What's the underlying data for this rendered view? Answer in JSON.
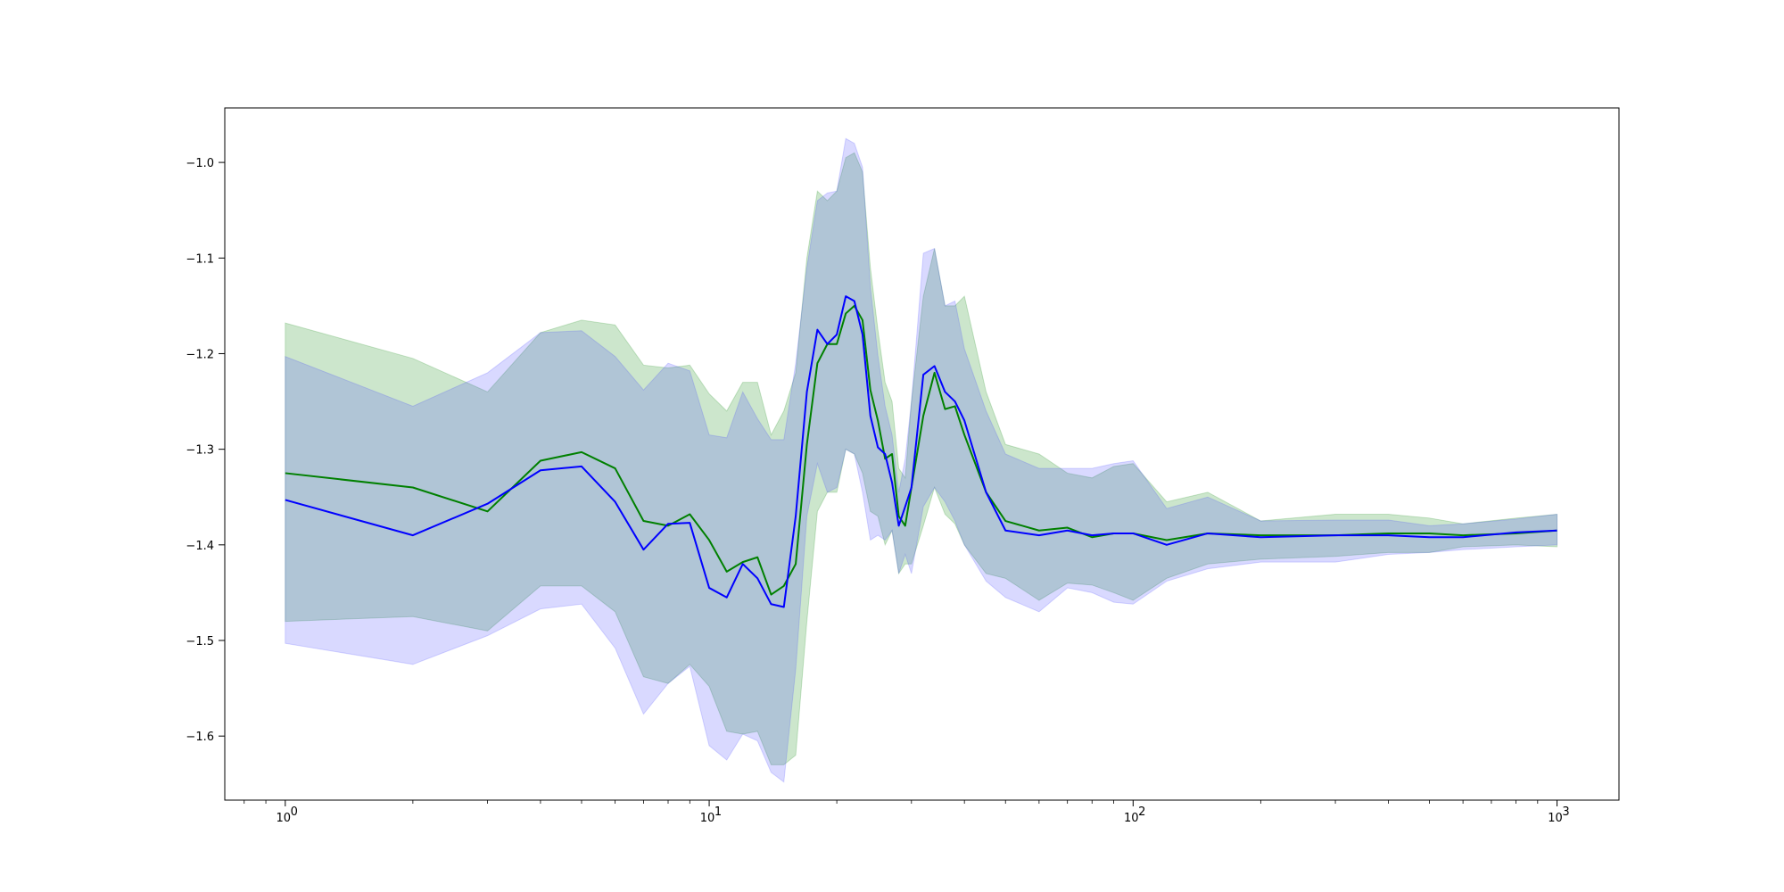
{
  "chart_data": {
    "type": "line",
    "title": "",
    "xlabel": "",
    "ylabel": "",
    "x_scale": "log",
    "xlim": [
      0.72,
      1400
    ],
    "ylim": [
      -1.667,
      -0.943
    ],
    "grid": false,
    "legend": "none",
    "x_ticks": [
      {
        "value": 1,
        "base": "10",
        "exp": "0"
      },
      {
        "value": 10,
        "base": "10",
        "exp": "1"
      },
      {
        "value": 100,
        "base": "10",
        "exp": "2"
      },
      {
        "value": 1000,
        "base": "10",
        "exp": "3"
      }
    ],
    "y_ticks": [
      {
        "value": -1.0,
        "label": "−1.0"
      },
      {
        "value": -1.1,
        "label": "−1.1"
      },
      {
        "value": -1.2,
        "label": "−1.2"
      },
      {
        "value": -1.3,
        "label": "−1.3"
      },
      {
        "value": -1.4,
        "label": "−1.4"
      },
      {
        "value": -1.5,
        "label": "−1.5"
      },
      {
        "value": -1.6,
        "label": "−1.6"
      }
    ],
    "series": [
      {
        "color": "#008000",
        "band_color": "#008000",
        "x": [
          1,
          2,
          3,
          4,
          5,
          6,
          7,
          8,
          9,
          10,
          11,
          12,
          13,
          14,
          15,
          16,
          17,
          18,
          19,
          20,
          21,
          22,
          23,
          24,
          25,
          26,
          27,
          28,
          29,
          30,
          32,
          34,
          36,
          38,
          40,
          45,
          50,
          60,
          70,
          80,
          90,
          100,
          120,
          150,
          200,
          300,
          400,
          500,
          600,
          800,
          1000
        ],
        "y": [
          -1.325,
          -1.34,
          -1.365,
          -1.312,
          -1.303,
          -1.32,
          -1.375,
          -1.38,
          -1.368,
          -1.395,
          -1.428,
          -1.418,
          -1.413,
          -1.452,
          -1.443,
          -1.42,
          -1.295,
          -1.21,
          -1.19,
          -1.19,
          -1.158,
          -1.15,
          -1.165,
          -1.238,
          -1.27,
          -1.31,
          -1.305,
          -1.37,
          -1.38,
          -1.34,
          -1.265,
          -1.22,
          -1.258,
          -1.255,
          -1.285,
          -1.345,
          -1.375,
          -1.385,
          -1.382,
          -1.392,
          -1.388,
          -1.388,
          -1.395,
          -1.388,
          -1.39,
          -1.39,
          -1.388,
          -1.388,
          -1.39,
          -1.388,
          -1.385
        ],
        "upper": [
          -1.168,
          -1.205,
          -1.24,
          -1.178,
          -1.165,
          -1.17,
          -1.212,
          -1.215,
          -1.212,
          -1.242,
          -1.26,
          -1.23,
          -1.23,
          -1.285,
          -1.26,
          -1.22,
          -1.1,
          -1.03,
          -1.04,
          -1.03,
          -0.995,
          -0.99,
          -1.01,
          -1.11,
          -1.175,
          -1.23,
          -1.25,
          -1.32,
          -1.33,
          -1.25,
          -1.14,
          -1.09,
          -1.15,
          -1.15,
          -1.14,
          -1.24,
          -1.295,
          -1.305,
          -1.325,
          -1.33,
          -1.318,
          -1.315,
          -1.355,
          -1.345,
          -1.375,
          -1.368,
          -1.368,
          -1.372,
          -1.378,
          -1.372,
          -1.368
        ],
        "lower": [
          -1.48,
          -1.475,
          -1.49,
          -1.443,
          -1.443,
          -1.47,
          -1.538,
          -1.545,
          -1.525,
          -1.548,
          -1.595,
          -1.598,
          -1.595,
          -1.63,
          -1.63,
          -1.62,
          -1.48,
          -1.365,
          -1.345,
          -1.345,
          -1.3,
          -1.305,
          -1.325,
          -1.365,
          -1.37,
          -1.4,
          -1.385,
          -1.43,
          -1.42,
          -1.42,
          -1.38,
          -1.34,
          -1.368,
          -1.378,
          -1.4,
          -1.43,
          -1.435,
          -1.458,
          -1.44,
          -1.442,
          -1.45,
          -1.458,
          -1.435,
          -1.42,
          -1.415,
          -1.412,
          -1.408,
          -1.408,
          -1.402,
          -1.4,
          -1.402
        ]
      },
      {
        "color": "#0000ff",
        "band_color": "#4040ff",
        "x": [
          1,
          2,
          3,
          4,
          5,
          6,
          7,
          8,
          9,
          10,
          11,
          12,
          13,
          14,
          15,
          16,
          17,
          18,
          19,
          20,
          21,
          22,
          23,
          24,
          25,
          26,
          27,
          28,
          29,
          30,
          32,
          34,
          36,
          38,
          40,
          45,
          50,
          60,
          70,
          80,
          90,
          100,
          120,
          150,
          200,
          300,
          400,
          500,
          600,
          800,
          1000
        ],
        "y": [
          -1.353,
          -1.39,
          -1.357,
          -1.322,
          -1.318,
          -1.355,
          -1.405,
          -1.378,
          -1.377,
          -1.445,
          -1.455,
          -1.42,
          -1.435,
          -1.462,
          -1.465,
          -1.37,
          -1.24,
          -1.175,
          -1.19,
          -1.18,
          -1.14,
          -1.145,
          -1.18,
          -1.265,
          -1.298,
          -1.305,
          -1.335,
          -1.38,
          -1.36,
          -1.34,
          -1.222,
          -1.213,
          -1.24,
          -1.25,
          -1.27,
          -1.345,
          -1.385,
          -1.39,
          -1.385,
          -1.39,
          -1.388,
          -1.388,
          -1.4,
          -1.388,
          -1.392,
          -1.39,
          -1.39,
          -1.392,
          -1.392,
          -1.387,
          -1.385
        ],
        "upper": [
          -1.203,
          -1.255,
          -1.22,
          -1.178,
          -1.176,
          -1.203,
          -1.238,
          -1.21,
          -1.218,
          -1.285,
          -1.288,
          -1.24,
          -1.268,
          -1.29,
          -1.29,
          -1.21,
          -1.11,
          -1.04,
          -1.032,
          -1.03,
          -0.975,
          -0.98,
          -1.005,
          -1.13,
          -1.202,
          -1.255,
          -1.285,
          -1.345,
          -1.31,
          -1.25,
          -1.095,
          -1.09,
          -1.15,
          -1.145,
          -1.195,
          -1.26,
          -1.305,
          -1.32,
          -1.32,
          -1.32,
          -1.315,
          -1.312,
          -1.362,
          -1.35,
          -1.375,
          -1.374,
          -1.374,
          -1.38,
          -1.378,
          -1.373,
          -1.368
        ],
        "lower": [
          -1.503,
          -1.525,
          -1.495,
          -1.467,
          -1.462,
          -1.508,
          -1.577,
          -1.545,
          -1.527,
          -1.61,
          -1.625,
          -1.598,
          -1.605,
          -1.638,
          -1.648,
          -1.53,
          -1.37,
          -1.315,
          -1.345,
          -1.34,
          -1.3,
          -1.305,
          -1.345,
          -1.395,
          -1.39,
          -1.395,
          -1.385,
          -1.43,
          -1.41,
          -1.43,
          -1.36,
          -1.34,
          -1.355,
          -1.375,
          -1.4,
          -1.438,
          -1.455,
          -1.47,
          -1.445,
          -1.45,
          -1.46,
          -1.462,
          -1.438,
          -1.425,
          -1.418,
          -1.418,
          -1.41,
          -1.408,
          -1.405,
          -1.402,
          -1.4
        ]
      }
    ]
  }
}
